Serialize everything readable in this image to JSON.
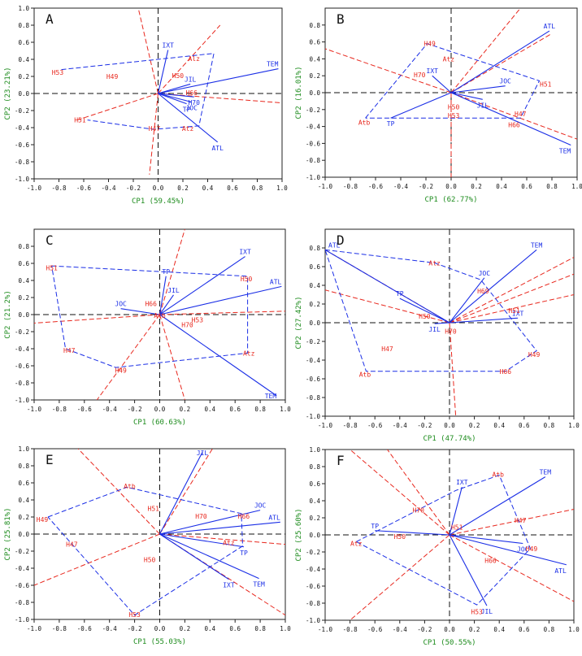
{
  "colors": {
    "env": "#e8281e",
    "gen": "#1a2ee6",
    "axis_label": "#1e8c1e",
    "frame": "#222222"
  },
  "chart_data": [
    {
      "type": "scatter",
      "panel": "A",
      "xlabel": "CP1 (59.45%)",
      "ylabel": "CP2 (23.21%)",
      "xlim": [
        -1.0,
        1.0
      ],
      "ylim": [
        -1.0,
        1.0
      ],
      "xticks": [
        "-1.0",
        "-0.8",
        "-0.6",
        "-0.4",
        "-0.2",
        "0.0",
        "0.2",
        "0.4",
        "0.6",
        "0.8",
        "1.0"
      ],
      "yticks": [
        "1.0",
        "0.8",
        "0.6",
        "0.4",
        "0.2",
        "0.0",
        "-0.2",
        "-0.4",
        "-0.6",
        "-0.8",
        "-1.0"
      ],
      "genotypes": [
        {
          "name": "TEM",
          "x": 0.97,
          "y": 0.29
        },
        {
          "name": "IXT",
          "x": 0.08,
          "y": 0.51
        },
        {
          "name": "JIL",
          "x": 0.26,
          "y": 0.11
        },
        {
          "name": "JOC",
          "x": 0.27,
          "y": -0.1
        },
        {
          "name": "ATL",
          "x": 0.48,
          "y": -0.57
        },
        {
          "name": "TP",
          "x": 0.23,
          "y": -0.12
        },
        {
          "name": "H70",
          "x": 0.29,
          "y": -0.04
        }
      ],
      "environments": [
        {
          "name": "H53",
          "x": -0.81,
          "y": 0.25
        },
        {
          "name": "H49",
          "x": -0.37,
          "y": 0.2
        },
        {
          "name": "H50",
          "x": 0.16,
          "y": 0.21
        },
        {
          "name": "H66",
          "x": 0.27,
          "y": 0.01
        },
        {
          "name": "H51",
          "x": -0.63,
          "y": -0.31
        },
        {
          "name": "H47",
          "x": -0.03,
          "y": -0.41
        },
        {
          "name": "Atz",
          "x": 0.24,
          "y": -0.41
        },
        {
          "name": "Alz",
          "x": 0.29,
          "y": 0.41
        }
      ],
      "polygon": [
        [
          -0.78,
          0.28
        ],
        [
          0.45,
          0.47
        ],
        [
          0.33,
          -0.38
        ],
        [
          -0.04,
          -0.42
        ],
        [
          -0.57,
          -0.31
        ]
      ],
      "rays": [
        [
          -0.16,
          1.0
        ],
        [
          -0.65,
          -0.31
        ],
        [
          -0.07,
          -0.95
        ],
        [
          0.5,
          0.8
        ],
        [
          1.0,
          -0.11
        ]
      ]
    },
    {
      "type": "scatter",
      "panel": "B",
      "xlabel": "CP1 (62.77%)",
      "ylabel": "CP2 (16.01%)",
      "xlim": [
        -1.0,
        1.0
      ],
      "ylim": [
        -1.0,
        1.0
      ],
      "xticks": [
        "-1.0",
        "-0.8",
        "-0.6",
        "-0.4",
        "-0.2",
        "0.0",
        "0.2",
        "0.4",
        "0.6",
        "0.8",
        "1.0"
      ],
      "yticks": [
        "0.8",
        "0.6",
        "0.4",
        "0.2",
        "0.0",
        "-0.2",
        "-0.4",
        "-0.6",
        "-0.8",
        "-1.0"
      ],
      "genotypes": [
        {
          "name": "ATL",
          "x": 0.78,
          "y": 0.73
        },
        {
          "name": "IXT",
          "x": -0.15,
          "y": 0.2
        },
        {
          "name": "JOC",
          "x": 0.43,
          "y": 0.08
        },
        {
          "name": "JIL",
          "x": 0.25,
          "y": -0.08
        },
        {
          "name": "TEM",
          "x": 0.95,
          "y": -0.62
        },
        {
          "name": "TP",
          "x": -0.48,
          "y": -0.3
        }
      ],
      "environments": [
        {
          "name": "H49",
          "x": -0.17,
          "y": 0.58
        },
        {
          "name": "Atz",
          "x": -0.02,
          "y": 0.4
        },
        {
          "name": "H70",
          "x": -0.25,
          "y": 0.21
        },
        {
          "name": "H51",
          "x": 0.75,
          "y": 0.1
        },
        {
          "name": "H50",
          "x": 0.02,
          "y": -0.17
        },
        {
          "name": "H53",
          "x": 0.02,
          "y": -0.27
        },
        {
          "name": "H47",
          "x": 0.55,
          "y": -0.25
        },
        {
          "name": "H66",
          "x": 0.5,
          "y": -0.38
        },
        {
          "name": "Atb",
          "x": -0.69,
          "y": -0.35
        }
      ],
      "polygon": [
        [
          -0.68,
          -0.3
        ],
        [
          -0.19,
          0.58
        ],
        [
          0.7,
          0.14
        ],
        [
          0.55,
          -0.3
        ],
        [
          -0.68,
          -0.3
        ]
      ],
      "rays": [
        [
          0.55,
          1.0
        ],
        [
          -1.0,
          0.52
        ],
        [
          0.0,
          -1.0
        ],
        [
          1.0,
          -0.55
        ],
        [
          0.8,
          0.7
        ]
      ]
    },
    {
      "type": "scatter",
      "panel": "C",
      "xlabel": "CP1 (60.63%)",
      "ylabel": "CP2 (21.2%)",
      "xlim": [
        -1.0,
        1.0
      ],
      "ylim": [
        -1.0,
        1.0
      ],
      "xticks": [
        "-1.0",
        "-0.8",
        "-0.6",
        "-0.4",
        "-0.2",
        "0.0",
        "0.2",
        "0.4",
        "0.6",
        "0.8",
        "1.0"
      ],
      "yticks": [
        "0.8",
        "0.6",
        "0.4",
        "0.2",
        "0.0",
        "-0.2",
        "-0.4",
        "-0.6",
        "-0.8",
        "-1.0"
      ],
      "genotypes": [
        {
          "name": "IXT",
          "x": 0.68,
          "y": 0.68
        },
        {
          "name": "ATL",
          "x": 0.97,
          "y": 0.33
        },
        {
          "name": "TEM",
          "x": 0.93,
          "y": -0.95
        },
        {
          "name": "JIL",
          "x": 0.11,
          "y": 0.23
        },
        {
          "name": "JOC",
          "x": -0.31,
          "y": 0.07
        },
        {
          "name": "TP",
          "x": 0.05,
          "y": 0.45
        }
      ],
      "environments": [
        {
          "name": "H51",
          "x": -0.86,
          "y": 0.55
        },
        {
          "name": "H50",
          "x": 0.69,
          "y": 0.42
        },
        {
          "name": "H66",
          "x": -0.07,
          "y": 0.13
        },
        {
          "name": "Atb",
          "x": 0.0,
          "y": -0.01
        },
        {
          "name": "H70",
          "x": 0.22,
          "y": -0.12
        },
        {
          "name": "H53",
          "x": 0.3,
          "y": -0.06
        },
        {
          "name": "H47",
          "x": -0.72,
          "y": -0.42
        },
        {
          "name": "H49",
          "x": -0.31,
          "y": -0.65
        },
        {
          "name": "Atz",
          "x": 0.71,
          "y": -0.45
        }
      ],
      "polygon": [
        [
          -0.86,
          0.57
        ],
        [
          0.7,
          0.45
        ],
        [
          0.7,
          -0.45
        ],
        [
          -0.35,
          -0.62
        ],
        [
          -0.75,
          -0.4
        ],
        [
          -0.86,
          0.57
        ]
      ],
      "rays": [
        [
          0.2,
          1.0
        ],
        [
          -1.0,
          -0.1
        ],
        [
          -0.5,
          -1.0
        ],
        [
          0.2,
          -1.0
        ],
        [
          1.0,
          0.04
        ]
      ]
    },
    {
      "type": "scatter",
      "panel": "D",
      "xlabel": "CP1 (47.74%)",
      "ylabel": "CP2 (27.42%)",
      "xlim": [
        -1.0,
        1.0
      ],
      "ylim": [
        -1.0,
        1.0
      ],
      "xticks": [
        "-1.0",
        "-0.8",
        "-0.6",
        "-0.4",
        "-0.2",
        "0.0",
        "0.2",
        "0.4",
        "0.6",
        "0.8",
        "1.0"
      ],
      "yticks": [
        "0.8",
        "0.6",
        "0.4",
        "0.2",
        "0.0",
        "-0.2",
        "-0.4",
        "-0.6",
        "-0.8",
        "-1.0"
      ],
      "genotypes": [
        {
          "name": "ATL",
          "x": -1.0,
          "y": 0.78
        },
        {
          "name": "TEM",
          "x": 0.7,
          "y": 0.78
        },
        {
          "name": "JOC",
          "x": 0.28,
          "y": 0.48
        },
        {
          "name": "IXT",
          "x": 0.55,
          "y": 0.05
        },
        {
          "name": "JIL",
          "x": -0.12,
          "y": -0.01
        },
        {
          "name": "TP",
          "x": -0.4,
          "y": 0.26
        }
      ],
      "environments": [
        {
          "name": "Atz",
          "x": -0.12,
          "y": 0.64
        },
        {
          "name": "H69",
          "x": 0.27,
          "y": 0.34
        },
        {
          "name": "H51",
          "x": 0.52,
          "y": 0.13
        },
        {
          "name": "H50",
          "x": -0.2,
          "y": 0.07
        },
        {
          "name": "H70",
          "x": 0.01,
          "y": -0.09
        },
        {
          "name": "H47",
          "x": -0.5,
          "y": -0.28
        },
        {
          "name": "H49",
          "x": 0.68,
          "y": -0.34
        },
        {
          "name": "H66",
          "x": 0.45,
          "y": -0.52
        },
        {
          "name": "Atb",
          "x": -0.68,
          "y": -0.55
        }
      ],
      "polygon": [
        [
          -1.0,
          0.78
        ],
        [
          -0.12,
          0.64
        ],
        [
          0.25,
          0.46
        ],
        [
          0.7,
          -0.3
        ],
        [
          0.45,
          -0.52
        ],
        [
          -0.67,
          -0.52
        ],
        [
          -1.0,
          0.78
        ]
      ],
      "rays": [
        [
          -1.0,
          0.78
        ],
        [
          -1.0,
          0.35
        ],
        [
          0.05,
          -1.0
        ],
        [
          1.0,
          0.52
        ],
        [
          1.0,
          0.7
        ],
        [
          1.0,
          0.3
        ]
      ]
    },
    {
      "type": "scatter",
      "panel": "E",
      "xlabel": "CP1 (55.03%)",
      "ylabel": "CP2 (25.81%)",
      "xlim": [
        -1.0,
        1.0
      ],
      "ylim": [
        -1.0,
        1.0
      ],
      "xticks": [
        "-1.0",
        "-0.8",
        "-0.6",
        "-0.4",
        "-0.2",
        "0.0",
        "0.2",
        "0.4",
        "0.6",
        "0.8",
        "1.0"
      ],
      "yticks": [
        "1.0",
        "0.8",
        "0.6",
        "0.4",
        "0.2",
        "0.0",
        "-0.2",
        "-0.4",
        "-0.6",
        "-0.8",
        "-1.0"
      ],
      "genotypes": [
        {
          "name": "JIL",
          "x": 0.34,
          "y": 0.96
        },
        {
          "name": "JOC",
          "x": 0.8,
          "y": 0.28
        },
        {
          "name": "ATL",
          "x": 0.96,
          "y": 0.14
        },
        {
          "name": "TP",
          "x": 0.67,
          "y": -0.15
        },
        {
          "name": "TEM",
          "x": 0.79,
          "y": -0.52
        },
        {
          "name": "IXT",
          "x": 0.55,
          "y": -0.53
        }
      ],
      "environments": [
        {
          "name": "Atb",
          "x": -0.24,
          "y": 0.56
        },
        {
          "name": "H51",
          "x": -0.05,
          "y": 0.3
        },
        {
          "name": "H70",
          "x": 0.33,
          "y": 0.21
        },
        {
          "name": "H66",
          "x": 0.67,
          "y": 0.21
        },
        {
          "name": "H49",
          "x": -0.94,
          "y": 0.17
        },
        {
          "name": "H47",
          "x": -0.7,
          "y": -0.12
        },
        {
          "name": "H50",
          "x": -0.08,
          "y": -0.3
        },
        {
          "name": "Atz",
          "x": 0.55,
          "y": -0.1
        },
        {
          "name": "H53",
          "x": -0.2,
          "y": -1.0
        }
      ],
      "polygon": [
        [
          -0.89,
          0.2
        ],
        [
          -0.26,
          0.55
        ],
        [
          0.65,
          0.24
        ],
        [
          0.66,
          -0.14
        ],
        [
          -0.2,
          -0.95
        ],
        [
          -0.89,
          0.2
        ]
      ],
      "rays": [
        [
          -0.65,
          1.0
        ],
        [
          -1.0,
          -0.6
        ],
        [
          1.0,
          -0.95
        ],
        [
          1.0,
          -0.12
        ],
        [
          0.42,
          1.0
        ]
      ]
    },
    {
      "type": "scatter",
      "panel": "F",
      "xlabel": "CP1 (50.55%)",
      "ylabel": "CP2 (25.60%)",
      "xlim": [
        -1.0,
        1.0
      ],
      "ylim": [
        -1.0,
        1.0
      ],
      "xticks": [
        "-1.0",
        "-0.8",
        "-0.6",
        "-0.4",
        "-0.2",
        "0.0",
        "0.2",
        "0.4",
        "0.6",
        "0.8",
        "1.0"
      ],
      "yticks": [
        "1.0",
        "0.8",
        "0.6",
        "0.4",
        "0.2",
        "0.0",
        "-0.2",
        "-0.4",
        "-0.6",
        "-0.8",
        "-1.0"
      ],
      "genotypes": [
        {
          "name": "IXT",
          "x": 0.1,
          "y": 0.56
        },
        {
          "name": "TEM",
          "x": 0.77,
          "y": 0.68
        },
        {
          "name": "JOC",
          "x": 0.59,
          "y": -0.1
        },
        {
          "name": "ATL",
          "x": 0.94,
          "y": -0.35
        },
        {
          "name": "JIL",
          "x": 0.3,
          "y": -0.83
        },
        {
          "name": "TP",
          "x": -0.6,
          "y": 0.05
        }
      ],
      "environments": [
        {
          "name": "Atb",
          "x": 0.39,
          "y": 0.71
        },
        {
          "name": "H70",
          "x": -0.25,
          "y": 0.29
        },
        {
          "name": "H51",
          "x": 0.06,
          "y": 0.09
        },
        {
          "name": "H50",
          "x": -0.4,
          "y": -0.02
        },
        {
          "name": "H47",
          "x": 0.57,
          "y": 0.17
        },
        {
          "name": "H49",
          "x": 0.66,
          "y": -0.16
        },
        {
          "name": "H66",
          "x": 0.33,
          "y": -0.3
        },
        {
          "name": "H53",
          "x": 0.22,
          "y": -0.9
        },
        {
          "name": "Atz",
          "x": -0.75,
          "y": -0.1
        }
      ],
      "polygon": [
        [
          -0.75,
          -0.08
        ],
        [
          0.05,
          0.52
        ],
        [
          0.4,
          0.7
        ],
        [
          0.65,
          -0.16
        ],
        [
          0.22,
          -0.82
        ],
        [
          -0.75,
          -0.08
        ]
      ],
      "rays": [
        [
          -0.5,
          1.0
        ],
        [
          -0.8,
          -1.0
        ],
        [
          -0.8,
          1.0
        ],
        [
          1.0,
          0.3
        ],
        [
          1.0,
          -0.78
        ]
      ]
    }
  ]
}
